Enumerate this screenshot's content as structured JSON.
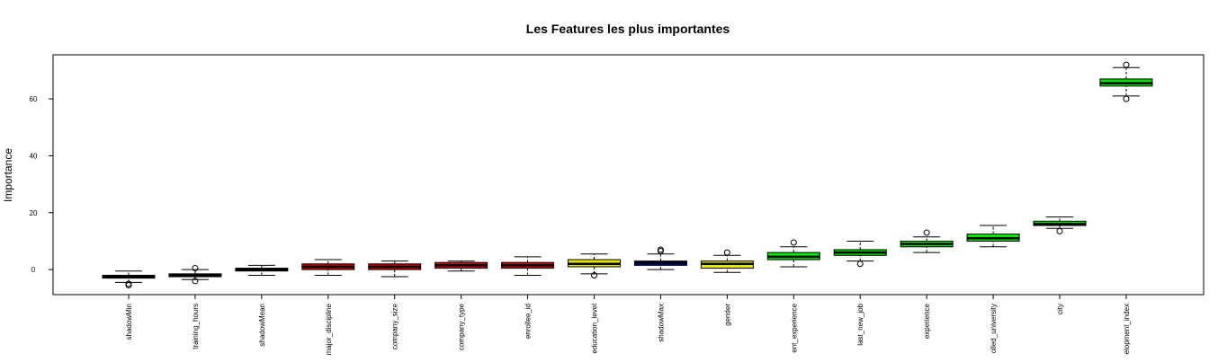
{
  "chart_data": {
    "type": "boxplot",
    "title": "Les Features les plus importantes",
    "y_label": "Importance",
    "categories": [
      "shadowMin",
      "training_hours",
      "shadowMean",
      "major_discipline",
      "company_size",
      "company_type",
      "enrollee_id",
      "education_level",
      "shadowMax",
      "gender",
      "ent_experience",
      "last_new_job",
      "experience",
      "olled_university",
      "city",
      "elopment_index"
    ],
    "colors": [
      "#00006e",
      "#cc0000",
      "#00006e",
      "#cc0000",
      "#cc0000",
      "#cc0000",
      "#cc0000",
      "#e6e600",
      "#00008b",
      "#e6e600",
      "#00e600",
      "#00e600",
      "#00e600",
      "#00e600",
      "#00e600",
      "#00e600"
    ],
    "low": [
      -4.5,
      -3.5,
      -2,
      -2,
      -2.5,
      -0.5,
      -2,
      -1.5,
      0,
      -1,
      1,
      3,
      6,
      8,
      14.5,
      61
    ],
    "q1": [
      -3,
      -2.5,
      -0.5,
      0,
      0,
      0.5,
      0.5,
      1,
      1.5,
      0.5,
      3.5,
      5,
      8,
      10,
      15.5,
      64.5
    ],
    "median": [
      -2.5,
      -2,
      0,
      1,
      1,
      1.5,
      1.5,
      2,
      2.5,
      2,
      4.5,
      6,
      9,
      11,
      16,
      65.5
    ],
    "q3": [
      -2,
      -1.5,
      0.5,
      2,
      2,
      2.5,
      2.5,
      3.5,
      3,
      3,
      6,
      7,
      10,
      12.5,
      17,
      67
    ],
    "high": [
      -0.5,
      0,
      1.5,
      3.5,
      3,
      3,
      4.5,
      5.5,
      5.5,
      5,
      8,
      10,
      11.5,
      15.5,
      18.5,
      71
    ],
    "outliers": [
      [
        -5,
        -5.5
      ],
      [
        0.5,
        -4
      ],
      [],
      [],
      [],
      [],
      [],
      [
        -2
      ],
      [
        6.5,
        7
      ],
      [
        6
      ],
      [
        9.5
      ],
      [
        2
      ],
      [
        13
      ],
      [],
      [
        13.5
      ],
      [
        60,
        72
      ]
    ],
    "ylim": [
      -8.8,
      75.5
    ],
    "yticks": [
      0,
      20,
      40,
      60
    ]
  }
}
